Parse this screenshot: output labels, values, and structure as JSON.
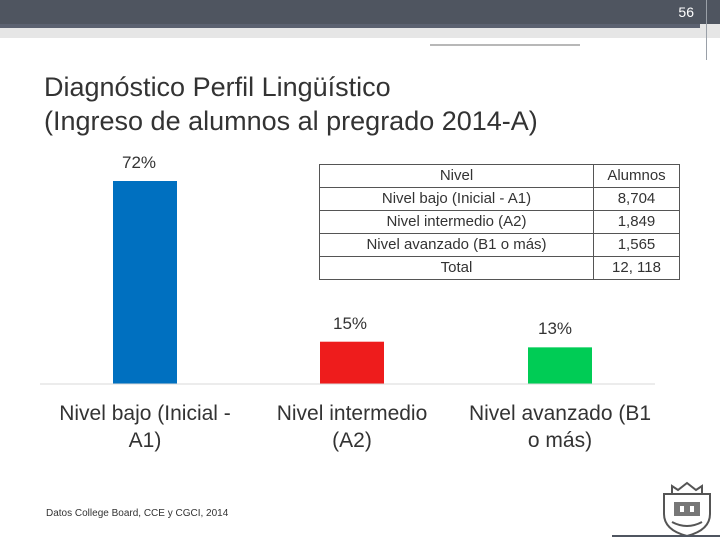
{
  "slide": {
    "page_number": "56"
  },
  "title": {
    "line1": "Diagnóstico Perfil Lingüístico",
    "line2": "(Ingreso de alumnos al pregrado 2014-A)"
  },
  "chart_data": {
    "type": "bar",
    "categories": [
      "Nivel bajo (Inicial - A1)",
      "Nivel intermedio (A2)",
      "Nivel avanzado (B1 o más)"
    ],
    "category_lines": [
      [
        "Nivel bajo (Inicial -",
        "A1)"
      ],
      [
        "Nivel intermedio",
        "(A2)"
      ],
      [
        "Nivel avanzado (B1",
        "o más)"
      ]
    ],
    "values": [
      72,
      15,
      13
    ],
    "data_labels": [
      "72%",
      "15%",
      "13%"
    ],
    "unit": "%",
    "ylim": [
      0,
      72
    ],
    "colors": [
      "#0070c0",
      "#ee1c1c",
      "#00cc55"
    ],
    "grid": false,
    "legend": "none"
  },
  "table": {
    "header": [
      "Nivel",
      "Alumnos"
    ],
    "rows": [
      [
        "Nivel bajo (Inicial - A1)",
        "8,704"
      ],
      [
        "Nivel intermedio (A2)",
        "1,849"
      ],
      [
        "Nivel avanzado (B1 o más)",
        "1,565"
      ],
      [
        "Total",
        "12, 118"
      ]
    ]
  },
  "source": "Datos College Board, CCE y CGCI, 2014",
  "colors": {
    "header_bar": "#4f5560",
    "text": "#333333"
  }
}
